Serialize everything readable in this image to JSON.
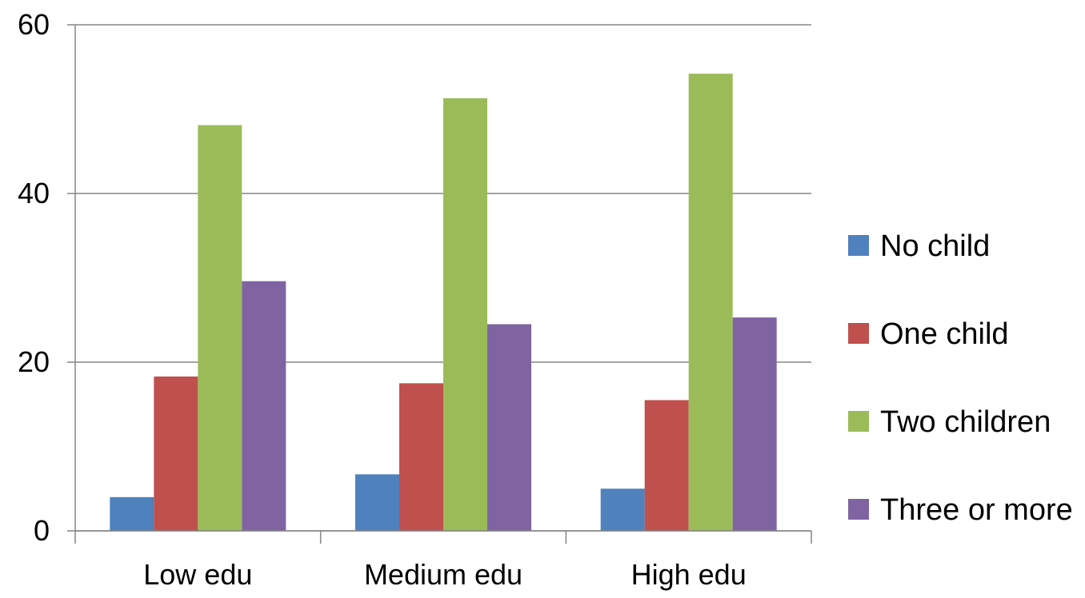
{
  "chart_data": {
    "type": "bar",
    "categories": [
      "Low edu",
      "Medium edu",
      "High edu"
    ],
    "series": [
      {
        "name": "No child",
        "color": "#4F81BD",
        "values": [
          4.0,
          6.7,
          5.0
        ]
      },
      {
        "name": "One child",
        "color": "#C0504D",
        "values": [
          18.3,
          17.5,
          15.5
        ]
      },
      {
        "name": "Two children",
        "color": "#9BBB59",
        "values": [
          48.1,
          51.3,
          54.2
        ]
      },
      {
        "name": "Three or more",
        "color": "#8064A2",
        "values": [
          29.6,
          24.5,
          25.3
        ]
      }
    ],
    "ylim": [
      0,
      60
    ],
    "yticks": [
      "0",
      "20",
      "40",
      "60"
    ],
    "title": "",
    "xlabel": "",
    "ylabel": "",
    "grid": true,
    "legend_position": "right"
  }
}
